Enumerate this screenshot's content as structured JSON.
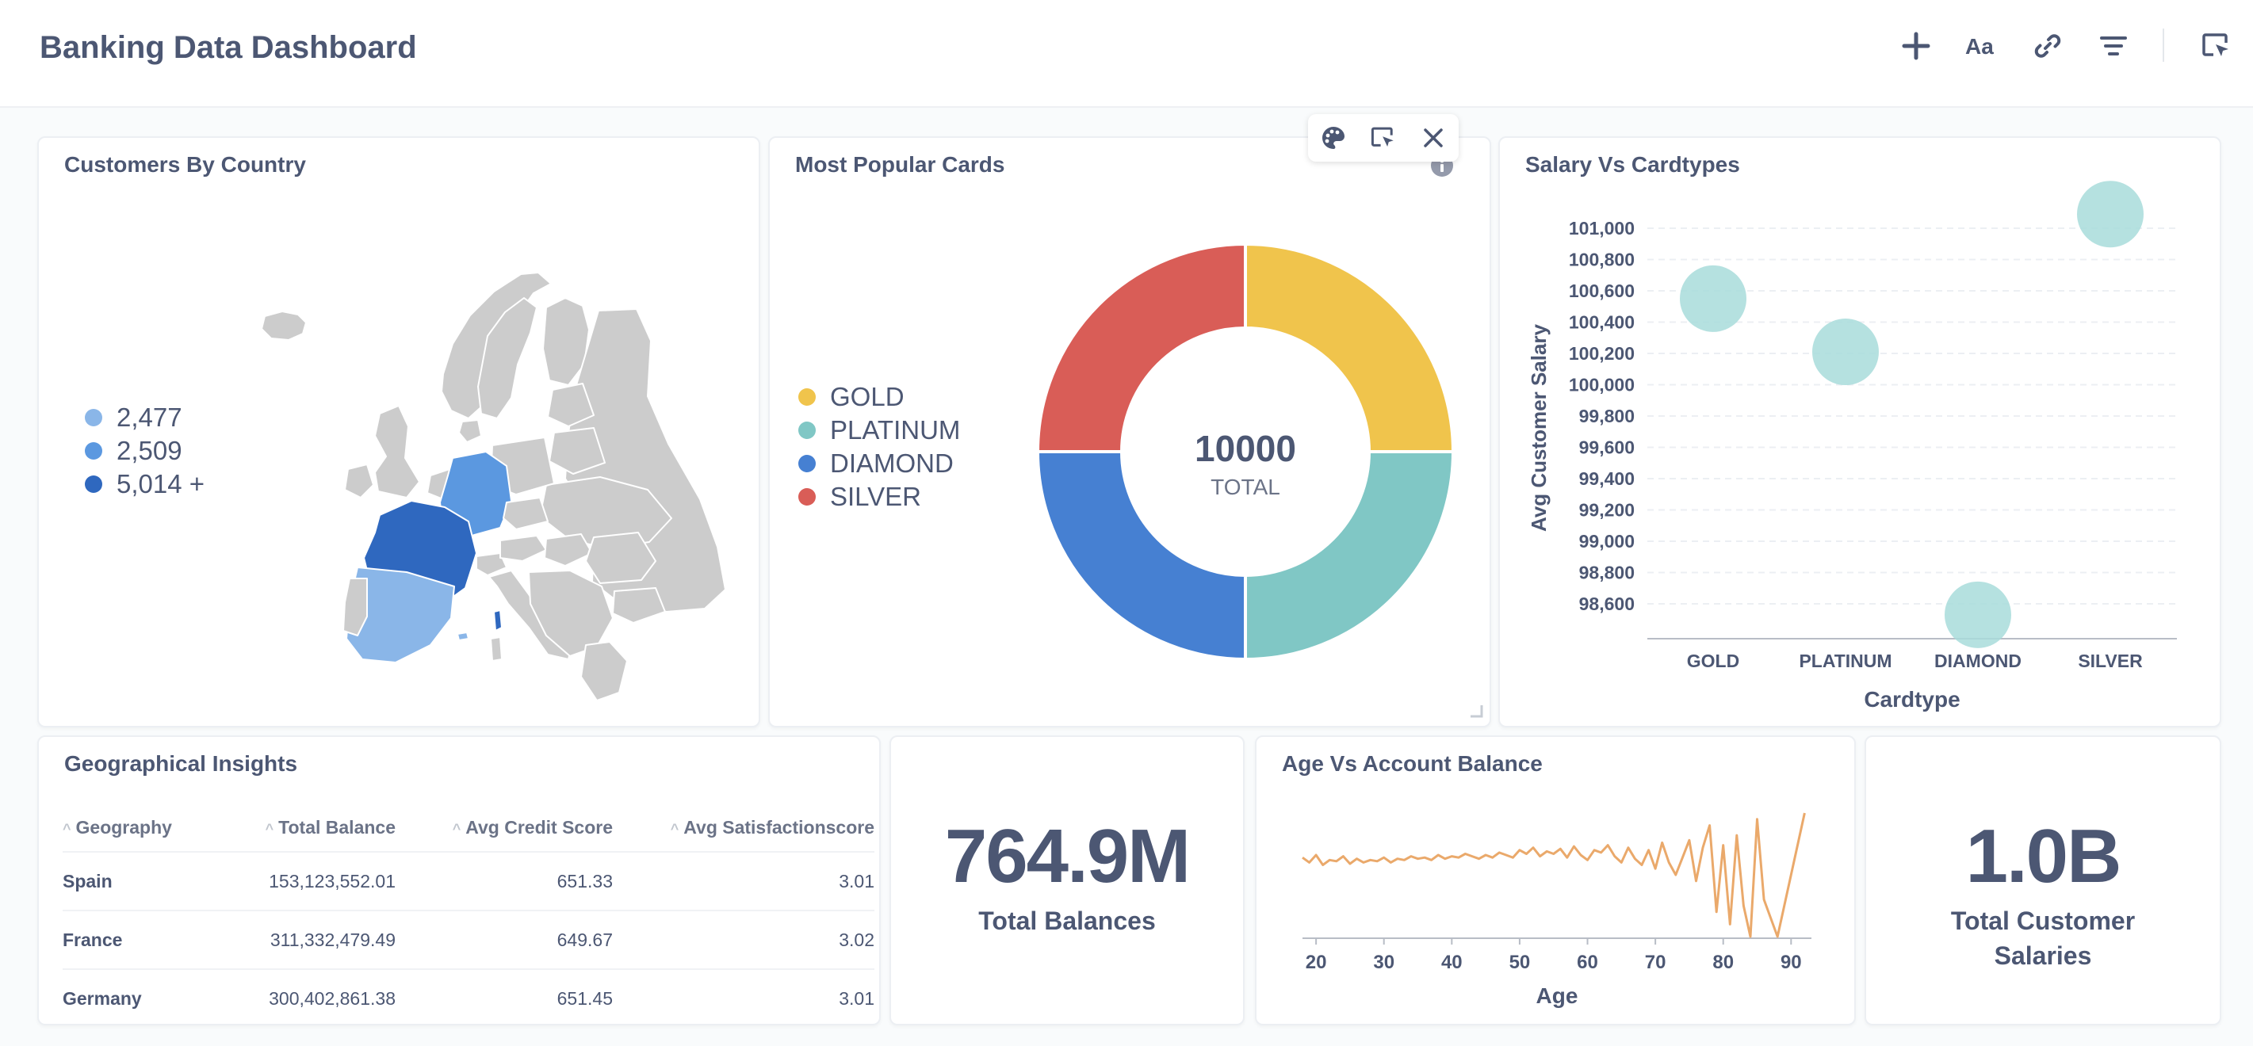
{
  "header": {
    "title": "Banking Data Dashboard",
    "tools": [
      "plus-icon",
      "text-size-icon",
      "link-icon",
      "filter-icon",
      "pointer-icon"
    ]
  },
  "cards": {
    "customers_by_country": {
      "title": "Customers By Country",
      "legend": [
        {
          "label": "2,477",
          "color": "#8ab6e8"
        },
        {
          "label": "2,509",
          "color": "#5b98e0"
        },
        {
          "label": "5,014 +",
          "color": "#2f68bf"
        }
      ]
    },
    "most_popular_cards": {
      "title": "Most Popular Cards",
      "center_value": "10000",
      "center_label": "TOTAL",
      "legend": [
        {
          "label": "GOLD",
          "color": "#f0c44c"
        },
        {
          "label": "PLATINUM",
          "color": "#80c7c5"
        },
        {
          "label": "DIAMOND",
          "color": "#4680d2"
        },
        {
          "label": "SILVER",
          "color": "#d95d57"
        }
      ]
    },
    "salary_vs_cardtypes": {
      "title": "Salary Vs Cardtypes",
      "xlabel": "Cardtype",
      "ylabel": "Avg Customer Salary",
      "yticks": [
        "101,000",
        "100,800",
        "100,600",
        "100,400",
        "100,200",
        "100,000",
        "99,800",
        "99,600",
        "99,400",
        "99,200",
        "99,000",
        "98,800",
        "98,600"
      ]
    },
    "geographical_insights": {
      "title": "Geographical Insights",
      "columns": [
        "Geography",
        "Total Balance",
        "Avg Credit Score",
        "Avg Satisfactionscore"
      ],
      "rows": [
        [
          "Spain",
          "153,123,552.01",
          "651.33",
          "3.01"
        ],
        [
          "France",
          "311,332,479.49",
          "649.67",
          "3.02"
        ],
        [
          "Germany",
          "300,402,861.38",
          "651.45",
          "3.01"
        ]
      ]
    },
    "total_balances": {
      "value": "764.9M",
      "label": "Total Balances"
    },
    "age_vs_balance": {
      "title": "Age Vs Account Balance",
      "xlabel": "Age",
      "xticks": [
        "20",
        "30",
        "40",
        "50",
        "60",
        "70",
        "80",
        "90"
      ]
    },
    "total_salaries": {
      "value": "1.0B",
      "label_line1": "Total Customer",
      "label_line2": "Salaries"
    }
  },
  "chart_data": [
    {
      "type": "pie",
      "title": "Most Popular Cards",
      "categories": [
        "GOLD",
        "PLATINUM",
        "DIAMOND",
        "SILVER"
      ],
      "values": [
        2500,
        2500,
        2500,
        2500
      ],
      "colors": [
        "#f0c44c",
        "#80c7c5",
        "#4680d2",
        "#d95d57"
      ],
      "total": 10000
    },
    {
      "type": "scatter",
      "title": "Salary Vs Cardtypes",
      "categories": [
        "GOLD",
        "PLATINUM",
        "DIAMOND",
        "SILVER"
      ],
      "values": [
        100550,
        100210,
        98530,
        101090
      ],
      "ylim": [
        98500,
        101100
      ],
      "xlabel": "Cardtype",
      "ylabel": "Avg Customer Salary",
      "color": "#a8dcdb"
    },
    {
      "type": "line",
      "title": "Age Vs Account Balance",
      "xlabel": "Age",
      "xlim": [
        18,
        93
      ],
      "color": "#eaa96b",
      "x": [
        18,
        19,
        20,
        21,
        22,
        23,
        24,
        25,
        26,
        27,
        28,
        29,
        30,
        31,
        32,
        33,
        34,
        35,
        36,
        37,
        38,
        39,
        40,
        41,
        42,
        43,
        44,
        45,
        46,
        47,
        48,
        49,
        50,
        51,
        52,
        53,
        54,
        55,
        56,
        57,
        58,
        59,
        60,
        61,
        62,
        63,
        64,
        65,
        66,
        67,
        68,
        69,
        70,
        71,
        72,
        73,
        74,
        75,
        76,
        77,
        78,
        79,
        80,
        81,
        82,
        83,
        84,
        85,
        86,
        88,
        92
      ],
      "values": [
        64,
        60,
        66,
        58,
        62,
        61,
        65,
        59,
        63,
        60,
        62,
        61,
        64,
        60,
        63,
        62,
        65,
        63,
        64,
        62,
        66,
        63,
        65,
        64,
        67,
        65,
        63,
        66,
        64,
        68,
        66,
        64,
        70,
        67,
        72,
        65,
        69,
        67,
        71,
        64,
        73,
        66,
        62,
        70,
        68,
        74,
        65,
        60,
        72,
        63,
        58,
        70,
        55,
        76,
        60,
        50,
        64,
        78,
        45,
        72,
        90,
        20,
        74,
        10,
        82,
        25,
        0,
        95,
        30,
        0,
        100
      ],
      "y_range": [
        0,
        100
      ]
    }
  ]
}
